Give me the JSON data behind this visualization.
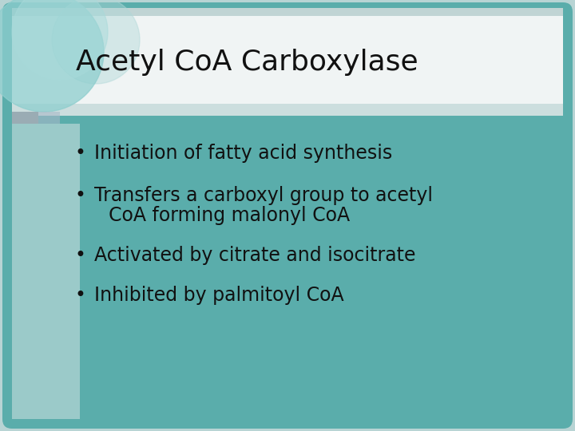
{
  "title": "Acetyl CoA Carboxylase",
  "title_fontsize": 26,
  "bullet_fontsize": 17,
  "bullets_line1": "Initiation of fatty acid synthesis",
  "bullets_line2a": "Transfers a carboxyl group to acetyl",
  "bullets_line2b": "CoA forming malonyl CoA",
  "bullets_line3": "Activated by citrate and isocitrate",
  "bullets_line4": "Inhibited by palmitoyl CoA",
  "outer_bg": "#b8d4d4",
  "main_teal": "#5aadab",
  "title_area_color": "#e4eced",
  "title_area_color2": "#f0f4f4",
  "circle_large": "#8ecece",
  "circle_inner": "#a8dada",
  "circle_small": "#9ecece",
  "square_gray": "#9aacb4",
  "square_blue": "#a8b8c8",
  "text_color": "#111111",
  "content_left_fade": "#c8dede",
  "bullet_char": "•"
}
